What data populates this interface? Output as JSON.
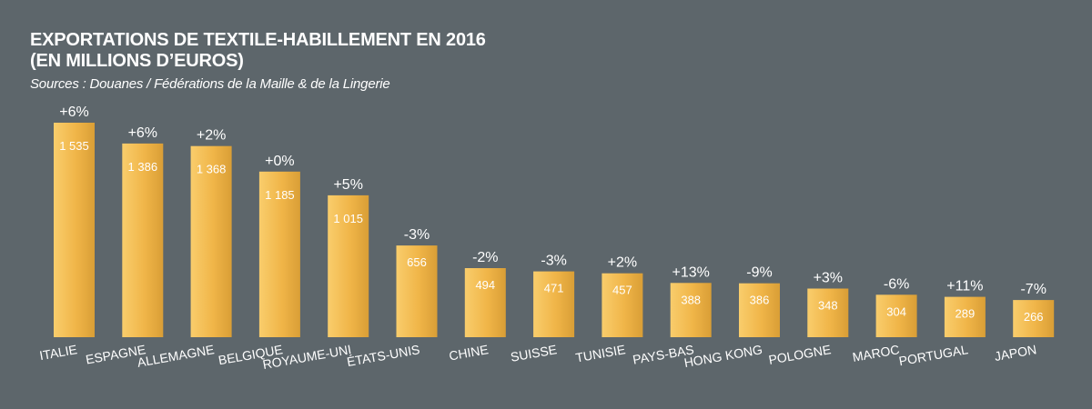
{
  "header": {
    "title_line1": "EXPORTATIONS DE TEXTILE-HABILLEMENT EN 2016",
    "title_line2": "(EN MILLIONS D’EUROS)",
    "source": "Sources : Douanes / Fédérations de la Maille & de la Lingerie"
  },
  "colors": {
    "background": "#5d666b",
    "bar_light": "#f7c35c",
    "bar_dark": "#dba23a",
    "text": "#ffffff"
  },
  "chart_data": {
    "type": "bar",
    "title": "EXPORTATIONS DE TEXTILE-HABILLEMENT EN 2016 (EN MILLIONS D’EUROS)",
    "categories": [
      "ITALIE",
      "ESPAGNE",
      "ALLEMAGNE",
      "BELGIQUE",
      "ROYAUME-UNI",
      "ÉTATS-UNIS",
      "CHINE",
      "SUISSE",
      "TUNISIE",
      "PAYS-BAS",
      "HONG KONG",
      "POLOGNE",
      "MAROC",
      "PORTUGAL",
      "JAPON"
    ],
    "values": [
      1535,
      1386,
      1368,
      1185,
      1015,
      656,
      494,
      471,
      457,
      388,
      386,
      348,
      304,
      289,
      266
    ],
    "value_labels": [
      "1 535",
      "1 386",
      "1 368",
      "1 185",
      "1 015",
      "656",
      "494",
      "471",
      "457",
      "388",
      "386",
      "348",
      "304",
      "289",
      "266"
    ],
    "change_labels": [
      "+6%",
      "+6%",
      "+2%",
      "+0%",
      "+5%",
      "-3%",
      "-2%",
      "-3%",
      "+2%",
      "+13%",
      "-9%",
      "+3%",
      "-6%",
      "+11%",
      "-7%"
    ],
    "xlabel": "",
    "ylabel": "",
    "ylim": [
      0,
      1535
    ],
    "grid": false,
    "legend": "none"
  }
}
